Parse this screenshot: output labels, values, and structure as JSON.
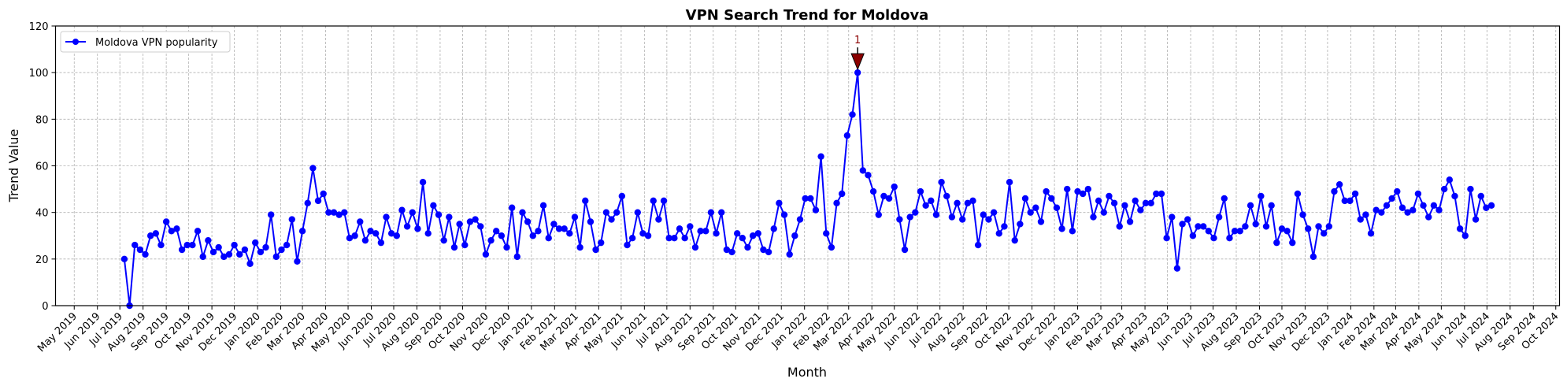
{
  "chart_data": {
    "type": "line",
    "title": "VPN Search Trend for Moldova",
    "xlabel": "Month",
    "ylabel": "Trend Value",
    "ylim": [
      0,
      120
    ],
    "yticks": [
      0,
      20,
      40,
      60,
      80,
      100,
      120
    ],
    "xlim": [
      "2019-04-06",
      "2024-10-06"
    ],
    "grid": true,
    "legend_position": "top-left",
    "x_tick_dates": [
      "2019-05-01",
      "2019-06-01",
      "2019-07-01",
      "2019-08-01",
      "2019-09-01",
      "2019-10-01",
      "2019-11-01",
      "2019-12-01",
      "2020-01-01",
      "2020-02-01",
      "2020-03-01",
      "2020-04-01",
      "2020-05-01",
      "2020-06-01",
      "2020-07-01",
      "2020-08-01",
      "2020-09-01",
      "2020-10-01",
      "2020-11-01",
      "2020-12-01",
      "2021-01-01",
      "2021-02-01",
      "2021-03-01",
      "2021-04-01",
      "2021-05-01",
      "2021-06-01",
      "2021-07-01",
      "2021-08-01",
      "2021-09-01",
      "2021-10-01",
      "2021-11-01",
      "2021-12-01",
      "2022-01-01",
      "2022-02-01",
      "2022-03-01",
      "2022-04-01",
      "2022-05-01",
      "2022-06-01",
      "2022-07-01",
      "2022-08-01",
      "2022-09-01",
      "2022-10-01",
      "2022-11-01",
      "2022-12-01",
      "2023-01-01",
      "2023-02-01",
      "2023-03-01",
      "2023-04-01",
      "2023-05-01",
      "2023-06-01",
      "2023-07-01",
      "2023-08-01",
      "2023-09-01",
      "2023-10-01",
      "2023-11-01",
      "2023-12-01",
      "2024-01-01",
      "2024-02-01",
      "2024-03-01",
      "2024-04-01",
      "2024-05-01",
      "2024-06-01",
      "2024-07-01",
      "2024-08-01",
      "2024-09-01",
      "2024-10-01"
    ],
    "x_tick_labels": [
      "May 2019",
      "Jun 2019",
      "Jul 2019",
      "Aug 2019",
      "Sep 2019",
      "Oct 2019",
      "Nov 2019",
      "Dec 2019",
      "Jan 2020",
      "Feb 2020",
      "Mar 2020",
      "Apr 2020",
      "May 2020",
      "Jun 2020",
      "Jul 2020",
      "Aug 2020",
      "Sep 2020",
      "Oct 2020",
      "Nov 2020",
      "Dec 2020",
      "Jan 2021",
      "Feb 2021",
      "Mar 2021",
      "Apr 2021",
      "May 2021",
      "Jun 2021",
      "Jul 2021",
      "Aug 2021",
      "Sep 2021",
      "Oct 2021",
      "Nov 2021",
      "Dec 2021",
      "Jan 2022",
      "Feb 2022",
      "Mar 2022",
      "Apr 2022",
      "May 2022",
      "Jun 2022",
      "Jul 2022",
      "Aug 2022",
      "Sep 2022",
      "Oct 2022",
      "Nov 2022",
      "Dec 2022",
      "Jan 2023",
      "Feb 2023",
      "Mar 2023",
      "Apr 2023",
      "May 2023",
      "Jun 2023",
      "Jul 2023",
      "Aug 2023",
      "Sep 2023",
      "Oct 2023",
      "Nov 2023",
      "Dec 2023",
      "Jan 2024",
      "Feb 2024",
      "Mar 2024",
      "Apr 2024",
      "May 2024",
      "Jun 2024",
      "Jul 2024",
      "Aug 2024",
      "Sep 2024",
      "Oct 2024"
    ],
    "series": [
      {
        "name": "Moldova VPN popularity",
        "color": "#0000ff",
        "x": [
          "2019-07-07",
          "2019-07-14",
          "2019-07-21",
          "2019-07-28",
          "2019-08-04",
          "2019-08-11",
          "2019-08-18",
          "2019-08-25",
          "2019-09-01",
          "2019-09-08",
          "2019-09-15",
          "2019-09-22",
          "2019-09-29",
          "2019-10-06",
          "2019-10-13",
          "2019-10-20",
          "2019-10-27",
          "2019-11-03",
          "2019-11-10",
          "2019-11-17",
          "2019-11-24",
          "2019-12-01",
          "2019-12-08",
          "2019-12-15",
          "2019-12-22",
          "2019-12-29",
          "2020-01-05",
          "2020-01-12",
          "2020-01-19",
          "2020-01-26",
          "2020-02-02",
          "2020-02-09",
          "2020-02-16",
          "2020-02-23",
          "2020-03-01",
          "2020-03-08",
          "2020-03-15",
          "2020-03-22",
          "2020-03-29",
          "2020-04-05",
          "2020-04-12",
          "2020-04-19",
          "2020-04-26",
          "2020-05-03",
          "2020-05-10",
          "2020-05-17",
          "2020-05-24",
          "2020-05-31",
          "2020-06-07",
          "2020-06-14",
          "2020-06-21",
          "2020-06-28",
          "2020-07-05",
          "2020-07-12",
          "2020-07-19",
          "2020-07-26",
          "2020-08-02",
          "2020-08-09",
          "2020-08-16",
          "2020-08-23",
          "2020-08-30",
          "2020-09-06",
          "2020-09-13",
          "2020-09-20",
          "2020-09-27",
          "2020-10-04",
          "2020-10-11",
          "2020-10-18",
          "2020-10-25",
          "2020-11-01",
          "2020-11-08",
          "2020-11-15",
          "2020-11-22",
          "2020-11-29",
          "2020-12-06",
          "2020-12-13",
          "2020-12-20",
          "2020-12-27",
          "2021-01-03",
          "2021-01-10",
          "2021-01-17",
          "2021-01-24",
          "2021-01-31",
          "2021-02-07",
          "2021-02-14",
          "2021-02-21",
          "2021-02-28",
          "2021-03-07",
          "2021-03-14",
          "2021-03-21",
          "2021-03-28",
          "2021-04-04",
          "2021-04-11",
          "2021-04-18",
          "2021-04-25",
          "2021-05-02",
          "2021-05-09",
          "2021-05-16",
          "2021-05-23",
          "2021-05-30",
          "2021-06-06",
          "2021-06-13",
          "2021-06-20",
          "2021-06-27",
          "2021-07-04",
          "2021-07-11",
          "2021-07-18",
          "2021-07-25",
          "2021-08-01",
          "2021-08-08",
          "2021-08-15",
          "2021-08-22",
          "2021-08-29",
          "2021-09-05",
          "2021-09-12",
          "2021-09-19",
          "2021-09-26",
          "2021-10-03",
          "2021-10-10",
          "2021-10-17",
          "2021-10-24",
          "2021-10-31",
          "2021-11-07",
          "2021-11-14",
          "2021-11-21",
          "2021-11-28",
          "2021-12-05",
          "2021-12-12",
          "2021-12-19",
          "2021-12-26",
          "2022-01-02",
          "2022-01-09",
          "2022-01-16",
          "2022-01-23",
          "2022-01-30",
          "2022-02-06",
          "2022-02-13",
          "2022-02-20",
          "2022-02-27",
          "2022-03-06",
          "2022-03-13",
          "2022-03-20",
          "2022-03-27",
          "2022-04-03",
          "2022-04-10",
          "2022-04-17",
          "2022-04-24",
          "2022-05-01",
          "2022-05-08",
          "2022-05-15",
          "2022-05-22",
          "2022-05-29",
          "2022-06-05",
          "2022-06-12",
          "2022-06-19",
          "2022-06-26",
          "2022-07-03",
          "2022-07-10",
          "2022-07-17",
          "2022-07-24",
          "2022-07-31",
          "2022-08-07",
          "2022-08-14",
          "2022-08-21",
          "2022-08-28",
          "2022-09-04",
          "2022-09-11",
          "2022-09-18",
          "2022-09-25",
          "2022-10-02",
          "2022-10-09",
          "2022-10-16",
          "2022-10-23",
          "2022-10-30",
          "2022-11-06",
          "2022-11-13",
          "2022-11-20",
          "2022-11-27",
          "2022-12-04",
          "2022-12-11",
          "2022-12-18",
          "2022-12-25",
          "2023-01-01",
          "2023-01-08",
          "2023-01-15",
          "2023-01-22",
          "2023-01-29",
          "2023-02-05",
          "2023-02-12",
          "2023-02-19",
          "2023-02-26",
          "2023-03-05",
          "2023-03-12",
          "2023-03-19",
          "2023-03-26",
          "2023-04-02",
          "2023-04-09",
          "2023-04-16",
          "2023-04-23",
          "2023-04-30",
          "2023-05-07",
          "2023-05-14",
          "2023-05-21",
          "2023-05-28",
          "2023-06-04",
          "2023-06-11",
          "2023-06-18",
          "2023-06-25",
          "2023-07-02",
          "2023-07-09",
          "2023-07-16",
          "2023-07-23",
          "2023-07-30",
          "2023-08-06",
          "2023-08-13",
          "2023-08-20",
          "2023-08-27",
          "2023-09-03",
          "2023-09-10",
          "2023-09-17",
          "2023-09-24",
          "2023-10-01",
          "2023-10-08",
          "2023-10-15",
          "2023-10-22",
          "2023-10-29",
          "2023-11-05",
          "2023-11-12",
          "2023-11-19",
          "2023-11-26",
          "2023-12-03",
          "2023-12-10",
          "2023-12-17",
          "2023-12-24",
          "2023-12-31",
          "2024-01-07",
          "2024-01-14",
          "2024-01-21",
          "2024-01-28",
          "2024-02-04",
          "2024-02-11",
          "2024-02-18",
          "2024-02-25",
          "2024-03-03",
          "2024-03-10",
          "2024-03-17",
          "2024-03-24",
          "2024-03-31",
          "2024-04-07",
          "2024-04-14",
          "2024-04-21",
          "2024-04-28",
          "2024-05-05",
          "2024-05-12",
          "2024-05-19",
          "2024-05-26",
          "2024-06-02",
          "2024-06-09",
          "2024-06-16",
          "2024-06-23",
          "2024-06-30",
          "2024-07-07"
        ],
        "values": [
          20,
          0,
          26,
          24,
          22,
          30,
          31,
          26,
          36,
          32,
          33,
          24,
          26,
          26,
          32,
          21,
          28,
          23,
          25,
          21,
          22,
          26,
          22,
          24,
          18,
          27,
          23,
          25,
          39,
          21,
          24,
          26,
          37,
          19,
          32,
          44,
          59,
          45,
          48,
          40,
          40,
          39,
          40,
          29,
          30,
          36,
          28,
          32,
          31,
          27,
          38,
          31,
          30,
          41,
          34,
          40,
          33,
          53,
          31,
          43,
          39,
          28,
          38,
          25,
          35,
          26,
          36,
          37,
          34,
          22,
          28,
          32,
          30,
          25,
          42,
          21,
          40,
          36,
          30,
          32,
          43,
          29,
          35,
          33,
          33,
          31,
          38,
          25,
          45,
          36,
          24,
          27,
          40,
          37,
          40,
          47,
          26,
          29,
          40,
          31,
          30,
          45,
          37,
          45,
          29,
          29,
          33,
          29,
          34,
          25,
          32,
          32,
          40,
          31,
          40,
          24,
          23,
          31,
          29,
          25,
          30,
          31,
          24,
          23,
          33,
          44,
          39,
          22,
          30,
          37,
          46,
          46,
          41,
          64,
          31,
          25,
          44,
          48,
          73,
          82,
          100,
          58,
          56,
          49,
          39,
          47,
          46,
          51,
          37,
          24,
          38,
          40,
          49,
          43,
          45,
          39,
          53,
          47,
          38,
          44,
          37,
          44,
          45,
          26,
          39,
          37,
          40,
          31,
          34,
          53,
          28,
          35,
          46,
          40,
          42,
          36,
          49,
          46,
          42,
          33,
          50,
          32,
          49,
          48,
          50,
          38,
          45,
          40,
          47,
          44,
          34,
          43,
          36,
          45,
          41,
          44,
          44,
          48,
          48,
          29,
          38,
          16,
          35,
          37,
          30,
          34,
          34,
          32,
          29,
          38,
          46,
          29,
          32,
          32,
          34,
          43,
          35,
          47,
          34,
          43,
          27,
          33,
          32,
          27,
          48,
          39,
          33,
          21,
          34,
          31,
          34,
          49,
          52,
          45,
          45,
          48,
          37,
          39,
          31,
          41,
          40,
          43,
          46,
          49,
          42,
          40,
          41,
          48,
          43,
          38,
          43,
          41,
          50,
          54,
          47,
          33,
          30,
          50,
          37,
          47,
          42,
          43
        ]
      }
    ],
    "annotations": [
      {
        "label": "1",
        "x": "2022-03-13",
        "y": 100,
        "marker_color": "#8b0000"
      }
    ]
  }
}
